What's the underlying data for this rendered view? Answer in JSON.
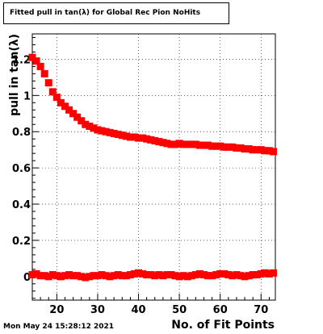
{
  "chart_data": {
    "type": "scatter",
    "title": "Fitted pull in tan(λ) for Global Rec Pion NoHits",
    "xlabel": "No. of Fit Points",
    "ylabel": "pull in tan(λ)",
    "xlim": [
      14,
      73.5
    ],
    "ylim": [
      -0.13,
      1.34
    ],
    "x_ticks": [
      20,
      30,
      40,
      50,
      60,
      70
    ],
    "y_ticks": [
      0,
      0.2,
      0.4,
      0.6,
      0.8,
      1,
      1.2
    ],
    "y_tick_labels": [
      "0",
      "0.2",
      "0.4",
      "0.6",
      "0.8",
      "1",
      "1.2"
    ],
    "grid": true,
    "marker_color": "#ff0000",
    "errorbar_color": "#000000",
    "series": [
      {
        "x": [
          14,
          15,
          16,
          17,
          18,
          19,
          20,
          21,
          22,
          23,
          24,
          25,
          26,
          27,
          28,
          29,
          30,
          31,
          32,
          33,
          34,
          35,
          36,
          37,
          38,
          39,
          40,
          41,
          42,
          43,
          44,
          45,
          46,
          47,
          48,
          49,
          50,
          51,
          52,
          53,
          54,
          55,
          56,
          57,
          58,
          59,
          60,
          61,
          62,
          63,
          64,
          65,
          66,
          67,
          68,
          69,
          70,
          71,
          72,
          73
        ],
        "y": [
          1.21,
          1.19,
          1.16,
          1.12,
          1.07,
          1.02,
          0.99,
          0.96,
          0.94,
          0.92,
          0.9,
          0.88,
          0.86,
          0.84,
          0.83,
          0.82,
          0.81,
          0.805,
          0.8,
          0.795,
          0.79,
          0.785,
          0.78,
          0.775,
          0.77,
          0.77,
          0.765,
          0.765,
          0.76,
          0.755,
          0.75,
          0.745,
          0.74,
          0.735,
          0.73,
          0.73,
          0.735,
          0.73,
          0.73,
          0.73,
          0.73,
          0.725,
          0.725,
          0.725,
          0.72,
          0.72,
          0.72,
          0.715,
          0.715,
          0.715,
          0.71,
          0.71,
          0.705,
          0.705,
          0.7,
          0.7,
          0.7,
          0.695,
          0.695,
          0.69
        ]
      },
      {
        "x": [
          14,
          15,
          16,
          17,
          18,
          19,
          20,
          21,
          22,
          23,
          24,
          25,
          26,
          27,
          28,
          29,
          30,
          31,
          32,
          33,
          34,
          35,
          36,
          37,
          38,
          39,
          40,
          41,
          42,
          43,
          44,
          45,
          46,
          47,
          48,
          49,
          50,
          51,
          52,
          53,
          54,
          55,
          56,
          57,
          58,
          59,
          60,
          61,
          62,
          63,
          64,
          65,
          66,
          67,
          68,
          69,
          70,
          71,
          72,
          73
        ],
        "y": [
          0.01,
          0.015,
          0.005,
          0.005,
          0.0,
          0.01,
          0.005,
          0.0,
          0.005,
          0.01,
          0.005,
          0.005,
          0.0,
          -0.005,
          0.0,
          0.005,
          0.005,
          0.01,
          0.005,
          0.0,
          0.005,
          0.01,
          0.005,
          0.005,
          0.01,
          0.015,
          0.02,
          0.015,
          0.01,
          0.01,
          0.005,
          0.01,
          0.005,
          0.01,
          0.01,
          0.005,
          0.0,
          0.005,
          0.0,
          0.005,
          0.01,
          0.015,
          0.01,
          0.005,
          0.005,
          0.01,
          0.015,
          0.015,
          0.01,
          0.005,
          0.01,
          0.005,
          0.0,
          0.005,
          0.01,
          0.01,
          0.015,
          0.02,
          0.015,
          0.02
        ]
      }
    ]
  },
  "footer": {
    "timestamp": "Mon May 24 15:28:12 2021"
  }
}
